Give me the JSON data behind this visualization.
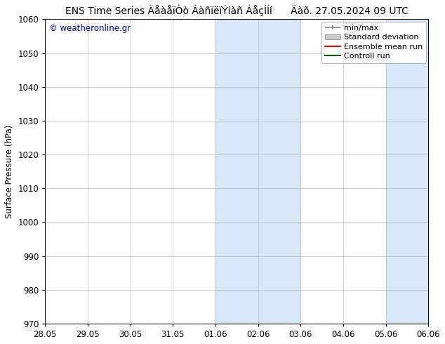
{
  "title": "ENS Time Series ÄåàåïÒò ÁàñïëïÝíàñ ÁåçÍÂí      Äàõ. 27.05.2024 09 UTC",
  "ylabel": "Surface Pressure (hPa)",
  "ylim": [
    970,
    1060
  ],
  "yticks": [
    970,
    980,
    990,
    1000,
    1010,
    1020,
    1030,
    1040,
    1050,
    1060
  ],
  "xtick_labels": [
    "28.05",
    "29.05",
    "30.05",
    "31.05",
    "01.06",
    "02.06",
    "03.06",
    "04.06",
    "05.06",
    "06.06"
  ],
  "background_color": "#ffffff",
  "plot_bg_color": "#ffffff",
  "shaded_regions": [
    {
      "xstart": 4,
      "xend": 6,
      "color": "#d6e8f7"
    },
    {
      "xstart": 8,
      "xend": 9,
      "color": "#d6e8f7"
    }
  ],
  "legend_labels": [
    "min/max",
    "Standard deviation",
    "Ensemble mean run",
    "Controll run"
  ],
  "legend_line_colors": [
    "#aaaaaa",
    "#bbbbbb",
    "#ff0000",
    "#008000"
  ],
  "watermark": "© weatheronline.gr",
  "watermark_color": "#0000cc",
  "grid_color": "#bbbbbb",
  "tick_color": "#000000",
  "font_size": 8.5,
  "title_font_size": 10
}
